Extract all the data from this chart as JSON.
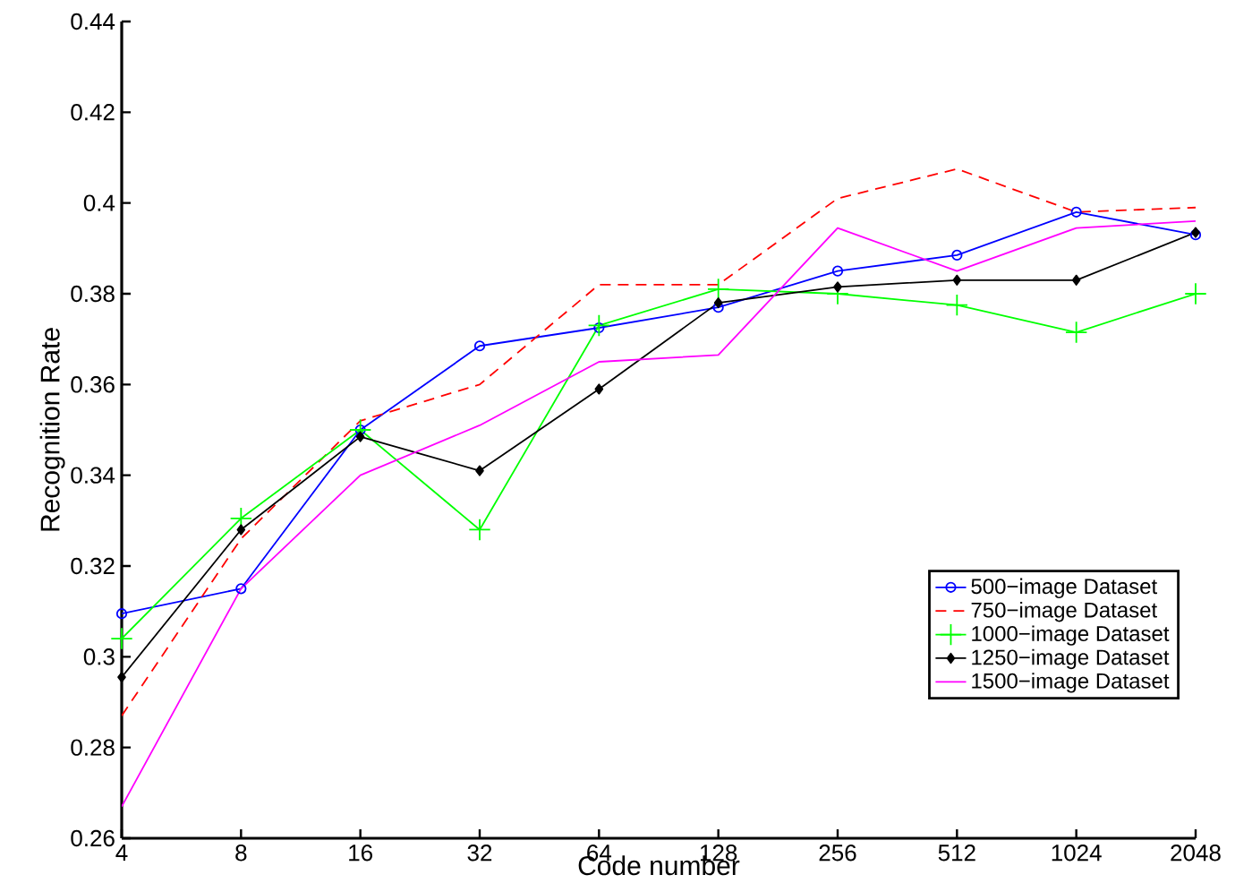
{
  "chart_data": {
    "type": "line",
    "xlabel": "Code number",
    "ylabel": "Recognition Rate",
    "categories": [
      "4",
      "8",
      "16",
      "32",
      "64",
      "128",
      "256",
      "512",
      "1024",
      "2048"
    ],
    "ylim": [
      0.26,
      0.44
    ],
    "yticks": [
      0.26,
      0.28,
      0.3,
      0.32,
      0.34,
      0.36,
      0.38,
      0.4,
      0.42,
      0.44
    ],
    "grid": false,
    "legend": "bottom right",
    "series": [
      {
        "name": "500−image Dataset",
        "color": "#0000ff",
        "marker": "circle",
        "line_style": "solid",
        "values": [
          0.3095,
          0.315,
          0.35,
          0.3685,
          0.3725,
          0.377,
          0.385,
          0.3885,
          0.398,
          0.393
        ]
      },
      {
        "name": "750−image Dataset",
        "color": "#ff0000",
        "marker": "none",
        "line_style": "dashed",
        "values": [
          0.287,
          0.326,
          0.352,
          0.36,
          0.382,
          0.382,
          0.401,
          0.4075,
          0.398,
          0.399
        ]
      },
      {
        "name": "1000−image Dataset",
        "color": "#00ff00",
        "marker": "cross",
        "line_style": "solid",
        "values": [
          0.304,
          0.3305,
          0.35,
          0.328,
          0.373,
          0.381,
          0.38,
          0.3775,
          0.3715,
          0.38
        ]
      },
      {
        "name": "1250−image Dataset",
        "color": "#000000",
        "marker": "diamond",
        "line_style": "solid",
        "values": [
          0.2955,
          0.328,
          0.3485,
          0.341,
          0.359,
          0.378,
          0.3815,
          0.383,
          0.383,
          0.3935
        ]
      },
      {
        "name": "1500−image Dataset",
        "color": "#ff00ff",
        "marker": "none",
        "line_style": "solid",
        "values": [
          0.267,
          0.315,
          0.34,
          0.351,
          0.365,
          0.3665,
          0.3945,
          0.385,
          0.3945,
          0.396
        ]
      }
    ]
  }
}
